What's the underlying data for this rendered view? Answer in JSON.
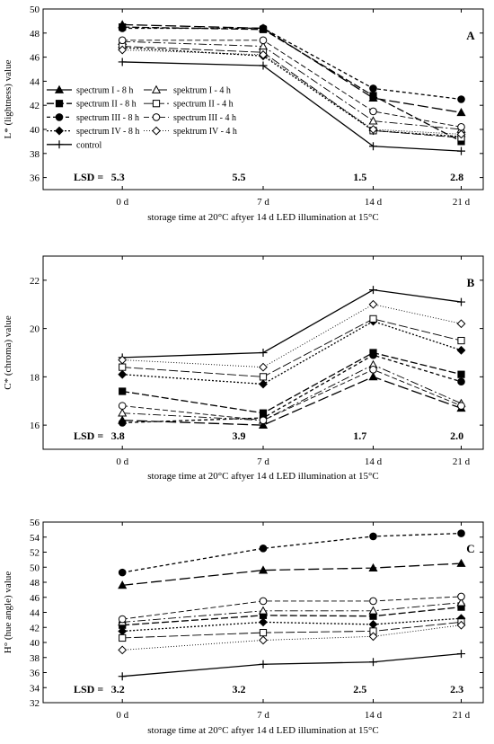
{
  "chart_data": [
    {
      "type": "line",
      "panel_label": "A",
      "ylabel": "L* (lightness) value",
      "xlabel": "storage time at 20°C aftyer 14 d LED illumination at 15°C",
      "categories": [
        "0 d",
        "7 d",
        "14 d",
        "21 d"
      ],
      "ylim": [
        35,
        50
      ],
      "yticks": [
        36,
        38,
        40,
        42,
        44,
        46,
        48,
        50
      ],
      "lsd_label": "LSD =",
      "lsd": [
        "5.3",
        "5.5",
        "1.5",
        "2.8"
      ],
      "legend": "left",
      "series": [
        {
          "name": "spectrum I - 8 h",
          "values": [
            48.7,
            48.4,
            42.6,
            41.4
          ],
          "marker": "triangle-filled",
          "dash": "12,4"
        },
        {
          "name": "spectrum II - 8 h",
          "values": [
            48.5,
            48.3,
            42.8,
            39.0
          ],
          "marker": "square-filled",
          "dash": "8,3"
        },
        {
          "name": "spectrum III - 8 h",
          "values": [
            48.4,
            48.4,
            43.4,
            42.5
          ],
          "marker": "circle-filled",
          "dash": "4,3"
        },
        {
          "name": "spectrum IV - 8 h",
          "values": [
            46.8,
            46.1,
            39.9,
            39.4
          ],
          "marker": "diamond-filled",
          "dash": "2,2"
        },
        {
          "name": "control",
          "values": [
            45.6,
            45.3,
            38.6,
            38.2
          ],
          "marker": "plus",
          "dash": ""
        },
        {
          "name": "spektrum I - 4 h",
          "values": [
            47.3,
            46.9,
            40.7,
            40.0
          ],
          "marker": "triangle-open",
          "dash": "9,3,2,3"
        },
        {
          "name": "spectrum II - 4 h",
          "values": [
            46.9,
            46.4,
            39.9,
            39.3
          ],
          "marker": "square-open",
          "dash": "10,3"
        },
        {
          "name": "spectrum III - 4 h",
          "values": [
            47.4,
            47.4,
            41.5,
            40.2
          ],
          "marker": "circle-open",
          "dash": "6,3"
        },
        {
          "name": "spektrum IV - 4 h",
          "values": [
            46.6,
            46.2,
            40.0,
            39.6
          ],
          "marker": "diamond-open",
          "dash": "1,2"
        }
      ]
    },
    {
      "type": "line",
      "panel_label": "B",
      "ylabel": "C* (chroma) value",
      "xlabel": "storage time at 20°C aftyer 14 d LED illumination at 15°C",
      "categories": [
        "0 d",
        "7 d",
        "14 d",
        "21 d"
      ],
      "ylim": [
        15,
        23
      ],
      "yticks": [
        16,
        18,
        20,
        22
      ],
      "lsd_label": "LSD =",
      "lsd": [
        "3.8",
        "3.9",
        "1.7",
        "2.0"
      ],
      "series": [
        {
          "name": "spectrum I - 8 h",
          "values": [
            16.2,
            16.0,
            18.0,
            16.7
          ],
          "marker": "triangle-filled",
          "dash": "12,4"
        },
        {
          "name": "spectrum II - 8 h",
          "values": [
            17.4,
            16.5,
            19.0,
            18.1
          ],
          "marker": "square-filled",
          "dash": "8,3"
        },
        {
          "name": "spectrum III - 8 h",
          "values": [
            16.1,
            16.3,
            18.9,
            17.8
          ],
          "marker": "circle-filled",
          "dash": "4,3"
        },
        {
          "name": "spectrum IV - 8 h",
          "values": [
            18.1,
            17.7,
            20.3,
            19.1
          ],
          "marker": "diamond-filled",
          "dash": "2,2"
        },
        {
          "name": "control",
          "values": [
            18.8,
            19.0,
            21.6,
            21.1
          ],
          "marker": "plus",
          "dash": ""
        },
        {
          "name": "spektrum I - 4 h",
          "values": [
            16.5,
            16.2,
            18.5,
            16.9
          ],
          "marker": "triangle-open",
          "dash": "9,3,2,3"
        },
        {
          "name": "spectrum II - 4 h",
          "values": [
            18.4,
            18.0,
            20.4,
            19.5
          ],
          "marker": "square-open",
          "dash": "10,3"
        },
        {
          "name": "spectrum III - 4 h",
          "values": [
            16.8,
            16.2,
            18.3,
            16.8
          ],
          "marker": "circle-open",
          "dash": "6,3"
        },
        {
          "name": "spektrum IV - 4 h",
          "values": [
            18.7,
            18.4,
            21.0,
            20.2
          ],
          "marker": "diamond-open",
          "dash": "1,2"
        }
      ]
    },
    {
      "type": "line",
      "panel_label": "C",
      "ylabel": "H° (hue angle) value",
      "xlabel": "storage time at 20°C aftyer 14 d LED illumination at 15°C",
      "categories": [
        "0 d",
        "7 d",
        "14 d",
        "21 d"
      ],
      "ylim": [
        32,
        56
      ],
      "yticks": [
        32,
        34,
        36,
        38,
        40,
        42,
        44,
        46,
        48,
        50,
        52,
        54,
        56
      ],
      "lsd_label": "LSD =",
      "lsd": [
        "3.2",
        "3.2",
        "2.5",
        "2.3"
      ],
      "series": [
        {
          "name": "spectrum I - 8 h",
          "values": [
            47.6,
            49.6,
            49.9,
            50.5
          ],
          "marker": "triangle-filled",
          "dash": "12,4"
        },
        {
          "name": "spectrum II - 8 h",
          "values": [
            42.3,
            43.6,
            43.5,
            44.7
          ],
          "marker": "square-filled",
          "dash": "8,3"
        },
        {
          "name": "spectrum III - 8 h",
          "values": [
            49.3,
            52.5,
            54.1,
            54.5
          ],
          "marker": "circle-filled",
          "dash": "4,3"
        },
        {
          "name": "spectrum IV - 8 h",
          "values": [
            41.5,
            42.7,
            42.4,
            43.2
          ],
          "marker": "diamond-filled",
          "dash": "2,2"
        },
        {
          "name": "control",
          "values": [
            35.5,
            37.1,
            37.4,
            38.5
          ],
          "marker": "plus",
          "dash": ""
        },
        {
          "name": "spektrum I - 4 h",
          "values": [
            42.7,
            44.2,
            44.2,
            45.3
          ],
          "marker": "triangle-open",
          "dash": "9,3,2,3"
        },
        {
          "name": "spectrum II - 4 h",
          "values": [
            40.6,
            41.3,
            41.5,
            42.7
          ],
          "marker": "square-open",
          "dash": "10,3"
        },
        {
          "name": "spectrum III - 4 h",
          "values": [
            43.1,
            45.5,
            45.5,
            46.1
          ],
          "marker": "circle-open",
          "dash": "6,3"
        },
        {
          "name": "spektrum IV - 4 h",
          "values": [
            39.0,
            40.3,
            40.8,
            42.3
          ],
          "marker": "diamond-open",
          "dash": "1,2"
        }
      ]
    }
  ]
}
